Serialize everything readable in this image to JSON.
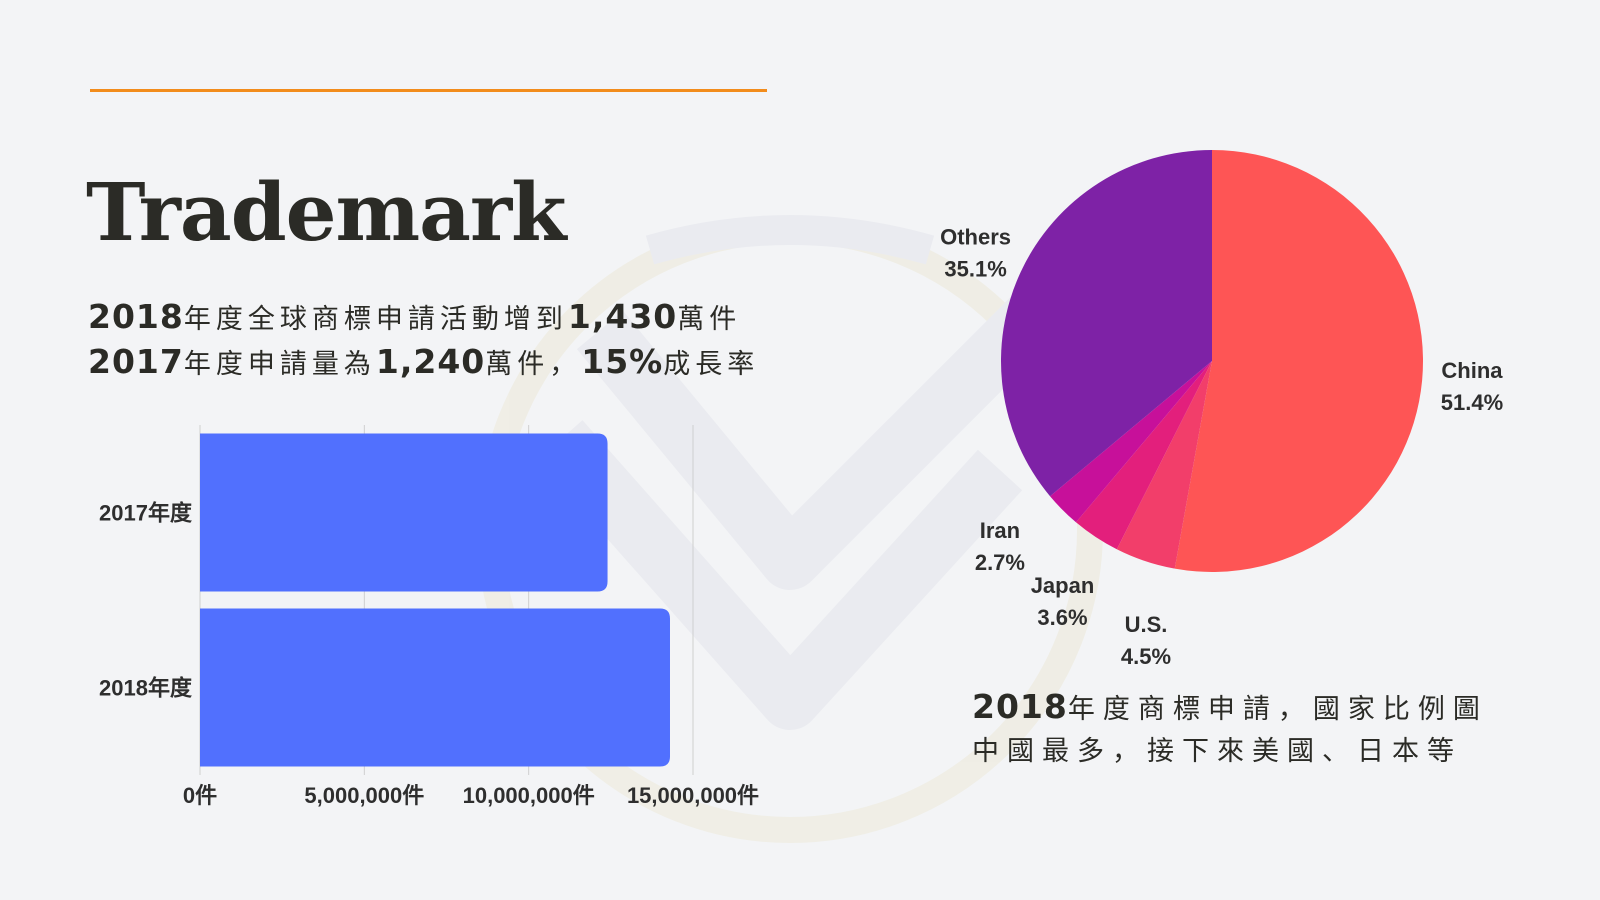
{
  "page": {
    "title": "Trademark",
    "subtitle_line1": {
      "year": "2018",
      "text1": "年度全球商標申請活動增到",
      "value": "1,430",
      "text2": "萬件"
    },
    "subtitle_line2": {
      "year": "2017",
      "text1": "年度申請量為",
      "value": "1,240",
      "text2": "萬件，",
      "rate": "15%",
      "text3": "成長率"
    },
    "pie_caption_line1": {
      "year": "2018",
      "text": "年度商標申請，國家比例圖"
    },
    "pie_caption_line2": "中國最多，接下來美國、日本等",
    "colors": {
      "accent_line": "#f28c1c",
      "bar": "#5170fe"
    }
  },
  "chart_data": [
    {
      "type": "bar",
      "orientation": "horizontal",
      "categories": [
        "2017年度",
        "2018年度"
      ],
      "values": [
        12400000,
        14300000
      ],
      "xlim": [
        0,
        15000000
      ],
      "ticks": [
        0,
        5000000,
        10000000,
        15000000
      ],
      "tick_labels": [
        "0件",
        "5,000,000件",
        "10,000,000件",
        "15,000,000件"
      ],
      "grid": true,
      "color": "#5170fe"
    },
    {
      "type": "pie",
      "labels": [
        "China",
        "U.S.",
        "Japan",
        "Iran",
        "Others"
      ],
      "values": [
        51.4,
        4.5,
        3.6,
        2.7,
        35.1
      ],
      "value_labels": [
        "51.4%",
        "4.5%",
        "3.6%",
        "2.7%",
        "35.1%"
      ],
      "colors": [
        "#fe5555",
        "#f23e6a",
        "#e31f7c",
        "#c7109a",
        "#7e22a6"
      ]
    }
  ]
}
